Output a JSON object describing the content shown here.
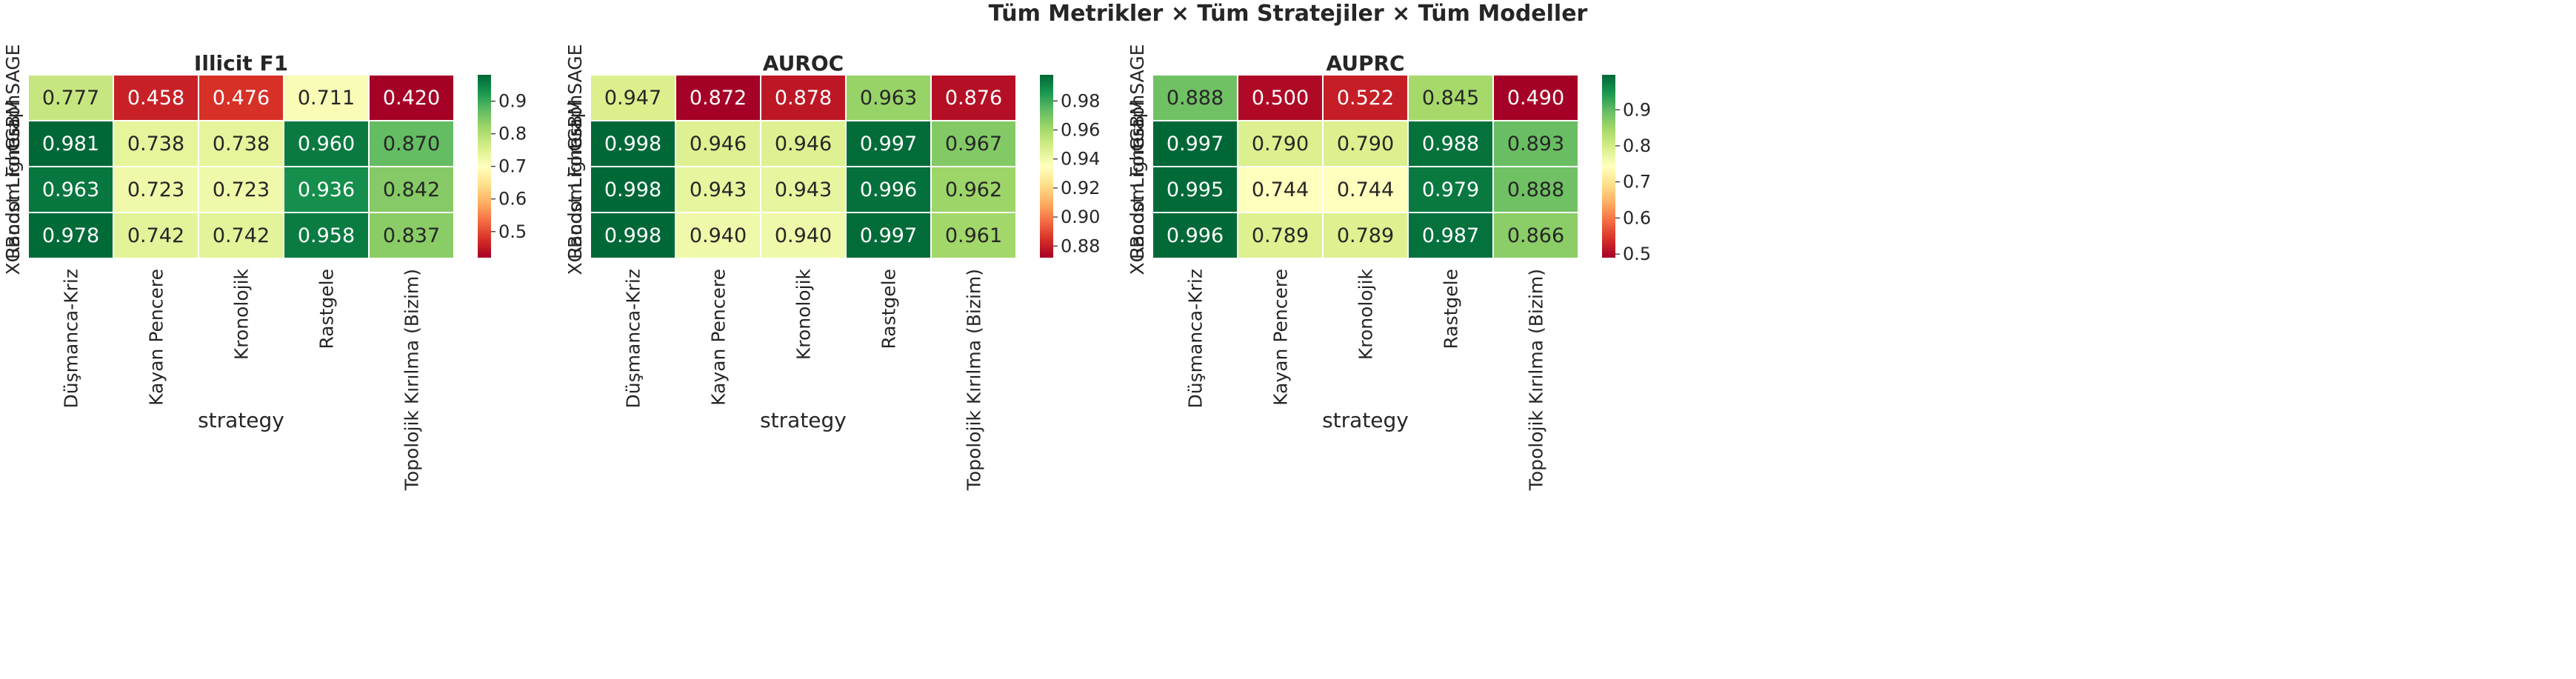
{
  "figure_title": "Tüm Metrikler × Tüm Stratejiler × Tüm Modeller",
  "colors": {
    "colormap": "RdYlGn",
    "cmap_stops": [
      "#a50026",
      "#d73027",
      "#f46d43",
      "#fdae61",
      "#fee08b",
      "#ffffbf",
      "#d9ef8b",
      "#a6d96a",
      "#66bd63",
      "#1a9850",
      "#006837"
    ],
    "cell_border": "#ffffff"
  },
  "chart_data": [
    {
      "type": "heatmap",
      "title": "Illicit F1",
      "xlabel": "strategy",
      "ylabel": "",
      "x_categories": [
        "Düşmanca-Kriz",
        "Kayan Pencere",
        "Kronolojik",
        "Rastgele",
        "Topolojik Kırılma (Bizim)"
      ],
      "y_categories": [
        "GraphSAGE",
        "LightGBM",
        "Random Forest",
        "XGBoost"
      ],
      "values": [
        [
          0.777,
          0.458,
          0.476,
          0.711,
          0.42
        ],
        [
          0.981,
          0.738,
          0.738,
          0.96,
          0.87
        ],
        [
          0.963,
          0.723,
          0.723,
          0.936,
          0.842
        ],
        [
          0.978,
          0.742,
          0.742,
          0.958,
          0.837
        ]
      ],
      "vmin": 0.42,
      "vmax": 0.981,
      "colorbar_ticks": [
        "0.5",
        "0.6",
        "0.7",
        "0.8",
        "0.9"
      ]
    },
    {
      "type": "heatmap",
      "title": "AUROC",
      "xlabel": "strategy",
      "ylabel": "",
      "x_categories": [
        "Düşmanca-Kriz",
        "Kayan Pencere",
        "Kronolojik",
        "Rastgele",
        "Topolojik Kırılma (Bizim)"
      ],
      "y_categories": [
        "GraphSAGE",
        "LightGBM",
        "Random Forest",
        "XGBoost"
      ],
      "values": [
        [
          0.947,
          0.872,
          0.878,
          0.963,
          0.876
        ],
        [
          0.998,
          0.946,
          0.946,
          0.997,
          0.967
        ],
        [
          0.998,
          0.943,
          0.943,
          0.996,
          0.962
        ],
        [
          0.998,
          0.94,
          0.94,
          0.997,
          0.961
        ]
      ],
      "vmin": 0.872,
      "vmax": 0.998,
      "colorbar_ticks": [
        "0.88",
        "0.90",
        "0.92",
        "0.94",
        "0.96",
        "0.98"
      ]
    },
    {
      "type": "heatmap",
      "title": "AUPRC",
      "xlabel": "strategy",
      "ylabel": "",
      "x_categories": [
        "Düşmanca-Kriz",
        "Kayan Pencere",
        "Kronolojik",
        "Rastgele",
        "Topolojik Kırılma (Bizim)"
      ],
      "y_categories": [
        "GraphSAGE",
        "LightGBM",
        "Random Forest",
        "XGBoost"
      ],
      "values": [
        [
          0.888,
          0.5,
          0.522,
          0.845,
          0.49
        ],
        [
          0.997,
          0.79,
          0.79,
          0.988,
          0.893
        ],
        [
          0.995,
          0.744,
          0.744,
          0.979,
          0.888
        ],
        [
          0.996,
          0.789,
          0.789,
          0.987,
          0.866
        ]
      ],
      "vmin": 0.49,
      "vmax": 0.997,
      "colorbar_ticks": [
        "0.5",
        "0.6",
        "0.7",
        "0.8",
        "0.9"
      ]
    }
  ]
}
